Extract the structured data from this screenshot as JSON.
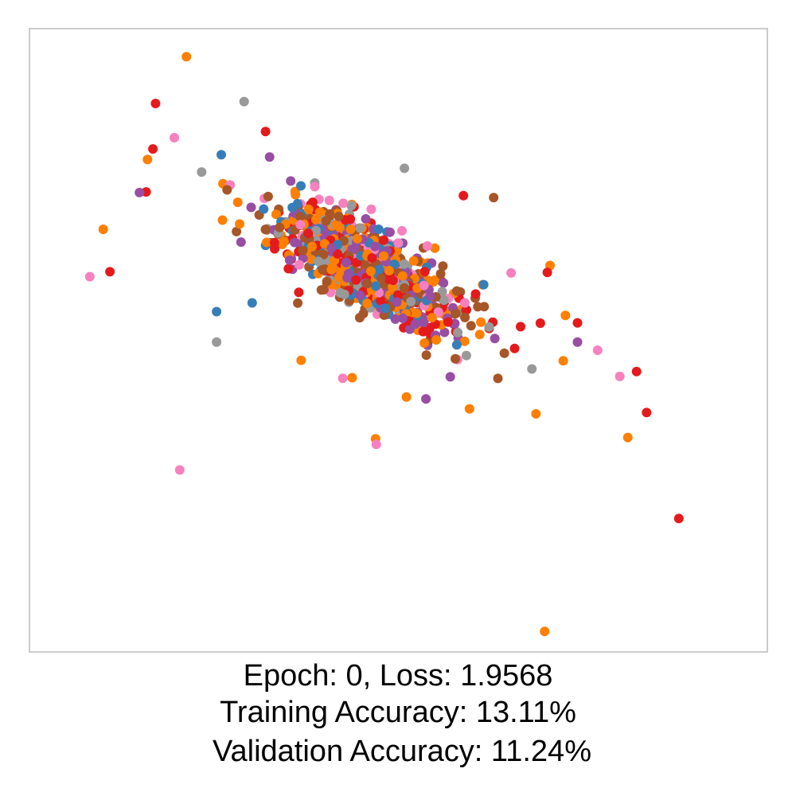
{
  "chart_data": {
    "type": "scatter",
    "title": "",
    "xlabel": "",
    "ylabel": "",
    "xlim": [
      -0.05,
      1.05
    ],
    "ylim": [
      0,
      1
    ],
    "grid": false,
    "legend": "none",
    "colors": {
      "blue": "#377eb8",
      "orange": "#ff7f00",
      "green": "#4daf4a",
      "pink": "#f781bf",
      "brown": "#a65628",
      "purple": "#984ea3",
      "gray": "#999999",
      "red": "#e41a1c"
    },
    "background_color": "#ffffff",
    "axes_border_color": "#cccccc",
    "caption_lines": [
      "Epoch: 0, Loss: 1.9568",
      "Training Accuracy: 13.11%",
      "Validation Accuracy: 11.24%"
    ]
  }
}
